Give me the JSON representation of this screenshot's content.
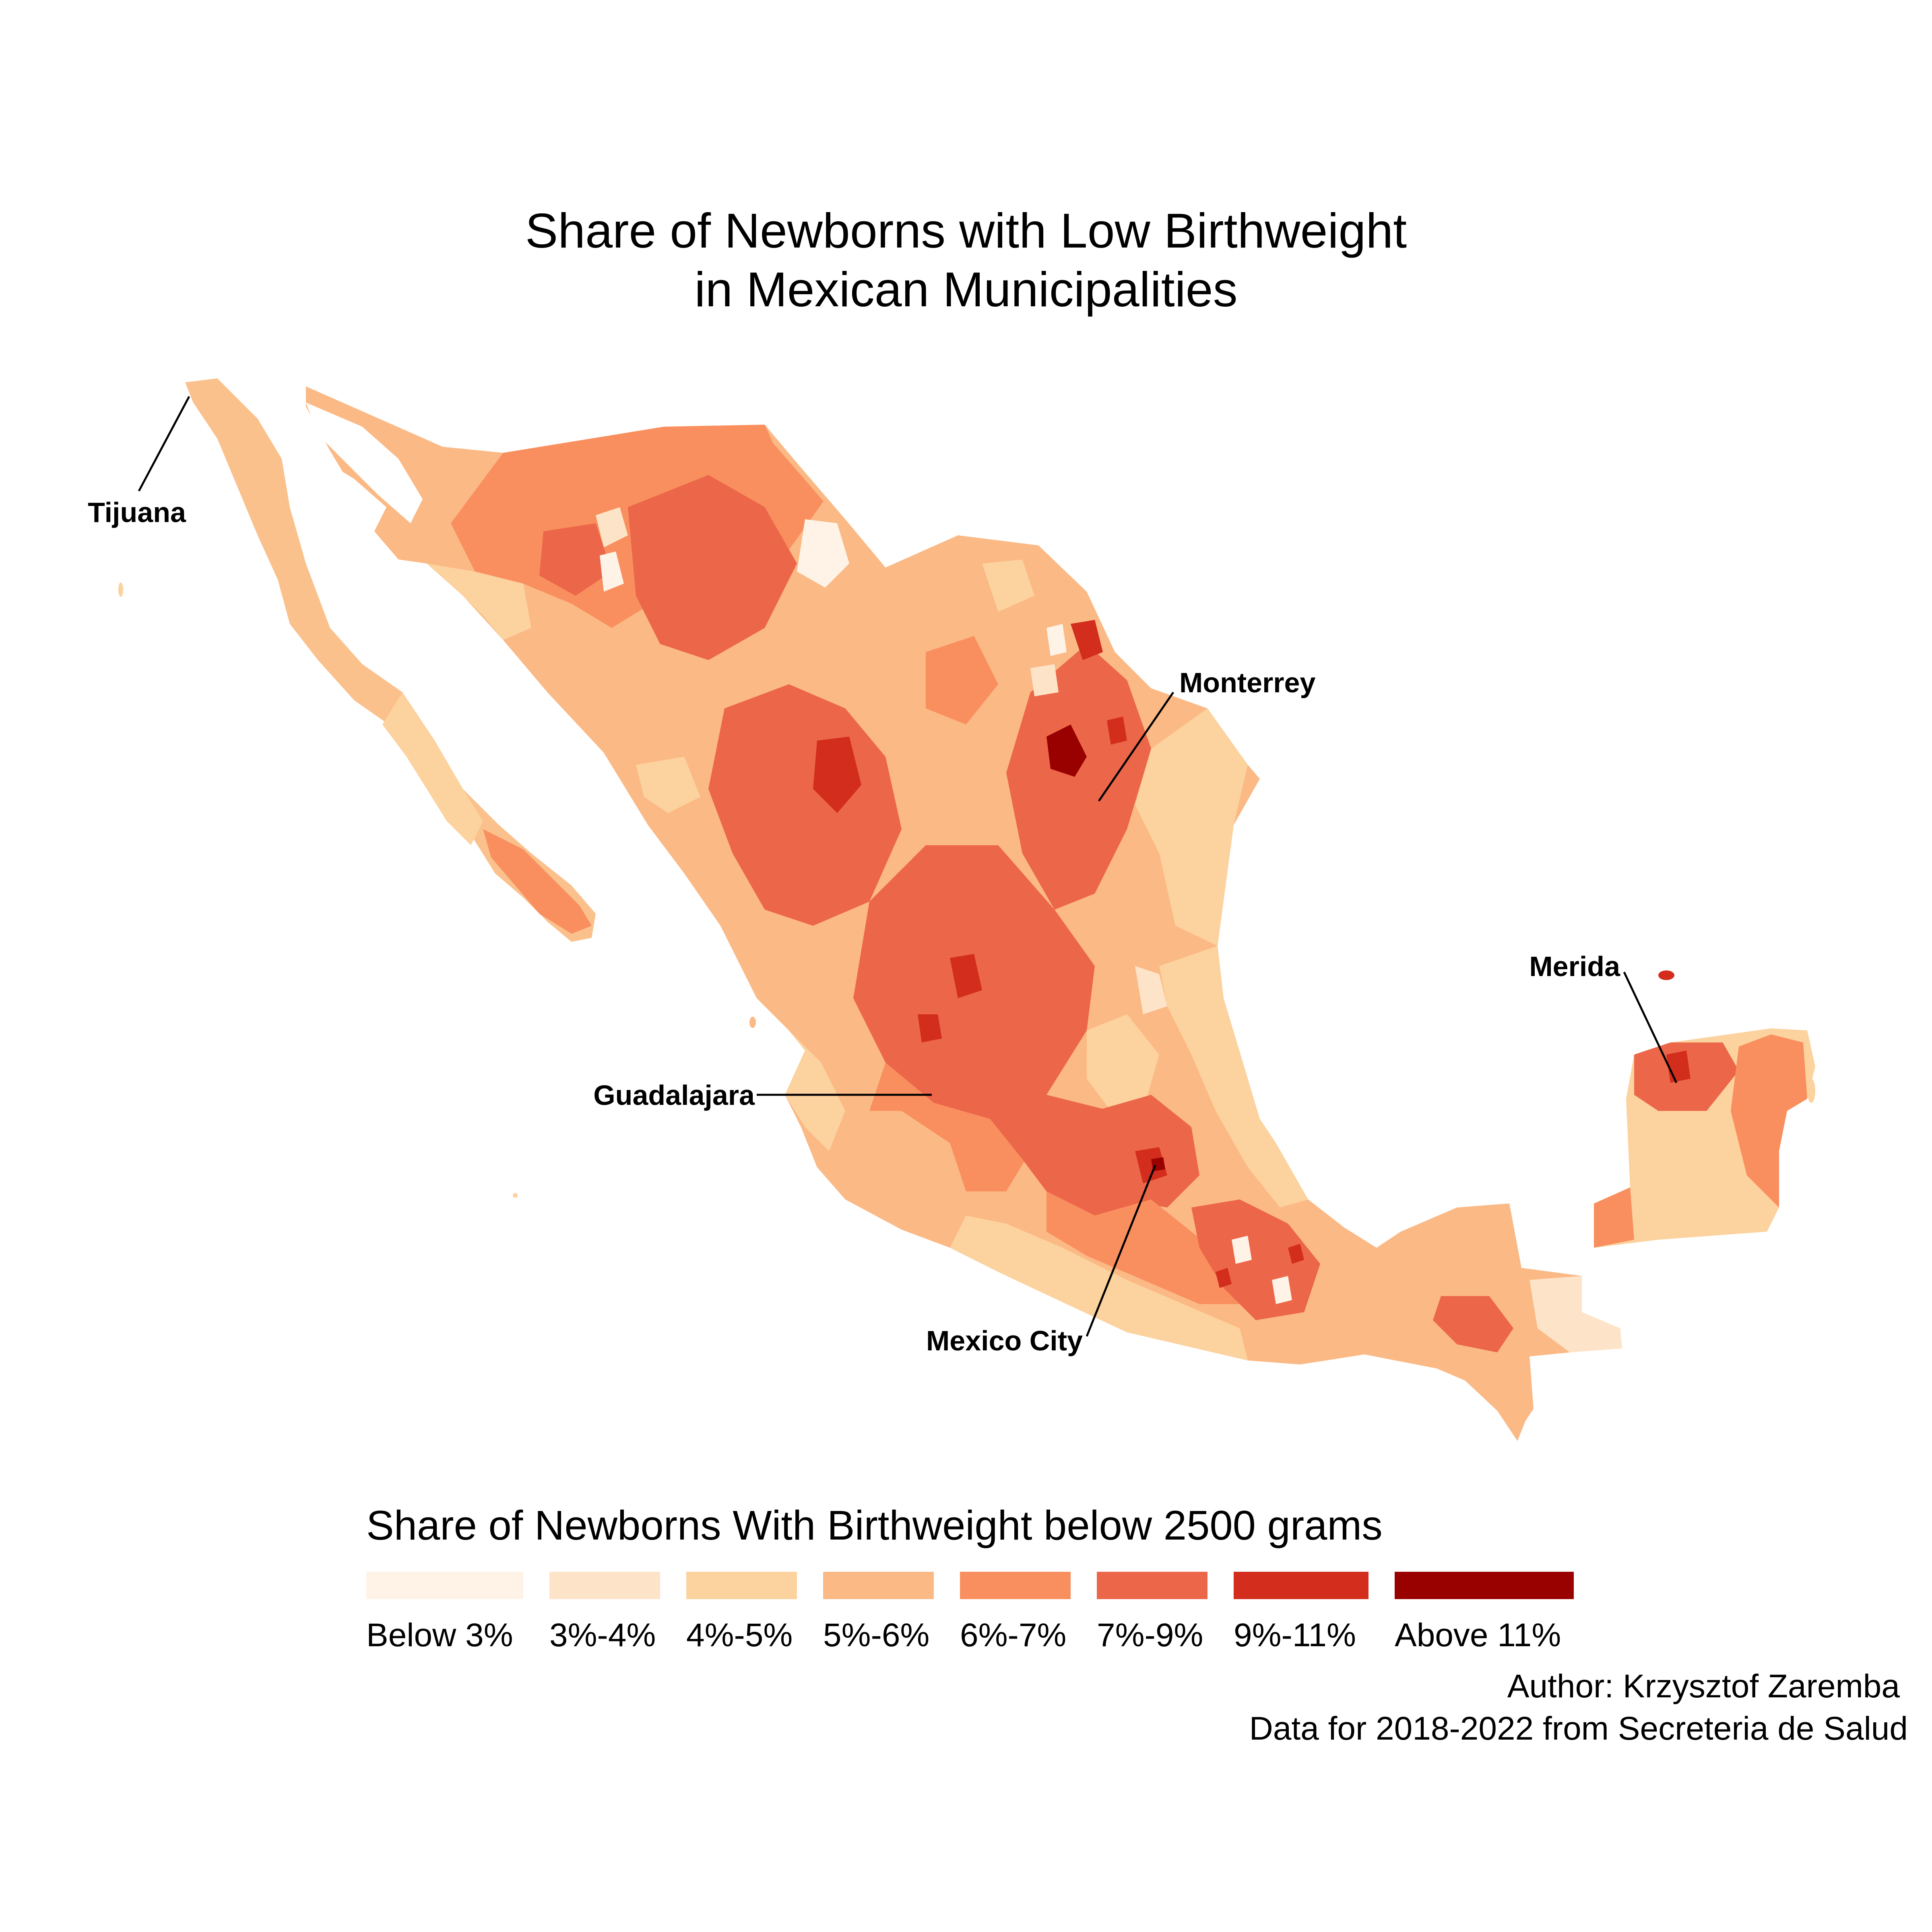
{
  "title": {
    "line1": "Share of Newborns with Low Birthweight",
    "line2": "in Mexican Municipalities"
  },
  "cities": [
    {
      "name": "Tijuana",
      "key": "tijuana"
    },
    {
      "name": "Monterrey",
      "key": "monterrey"
    },
    {
      "name": "Merida",
      "key": "merida"
    },
    {
      "name": "Guadalajara",
      "key": "guadalajara"
    },
    {
      "name": "Mexico City",
      "key": "mexico-city"
    }
  ],
  "legend": {
    "title": "Share of Newborns With Birthweight below 2500 grams",
    "items": [
      {
        "label": "Below 3%",
        "color": "#fef3e6"
      },
      {
        "label": "3%-4%",
        "color": "#fde4c8"
      },
      {
        "label": "4%-5%",
        "color": "#fcd29e"
      },
      {
        "label": "5%-6%",
        "color": "#fbb985"
      },
      {
        "label": "6%-7%",
        "color": "#f98f5e"
      },
      {
        "label": "7%-9%",
        "color": "#ec6649"
      },
      {
        "label": "9%-11%",
        "color": "#d22d1d"
      },
      {
        "label": "Above 11%",
        "color": "#990000"
      }
    ]
  },
  "caption": {
    "author": "Author: Krzysztof Zaremba",
    "source": "Data for 2018-2022 from Secreteria de Salud"
  }
}
